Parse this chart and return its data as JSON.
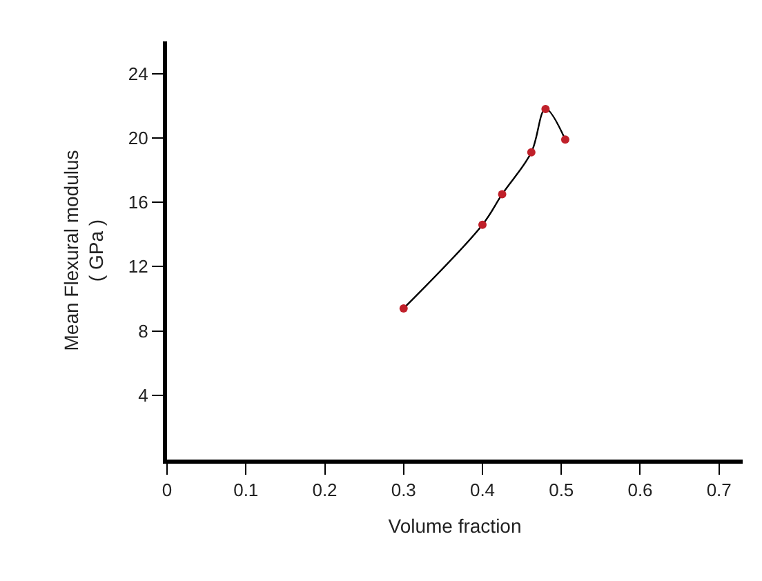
{
  "chart_data": {
    "type": "line",
    "xlabel": "Volume fraction",
    "ylabel": "Mean Flexural modulus\n( GPa )",
    "series": [
      {
        "color": "#000000",
        "marker": "none",
        "x": [
          0.3,
          0.4,
          0.425,
          0.462,
          0.48,
          0.505
        ],
        "values": [
          9.4,
          14.6,
          16.5,
          19.1,
          21.8,
          19.9
        ]
      },
      {
        "type": "scatter",
        "color": "#c0202a",
        "marker": "circle",
        "x": [
          0.3,
          0.4,
          0.425,
          0.462,
          0.48,
          0.505
        ],
        "values": [
          9.4,
          14.6,
          16.5,
          19.1,
          21.8,
          19.9
        ]
      }
    ],
    "xlim": [
      0,
      0.73
    ],
    "ylim": [
      0,
      26
    ],
    "xticks": [
      0,
      0.1,
      0.2,
      0.3,
      0.4,
      0.5,
      0.6,
      0.7
    ],
    "yticks": [
      4,
      8,
      12,
      16,
      20,
      24
    ]
  }
}
